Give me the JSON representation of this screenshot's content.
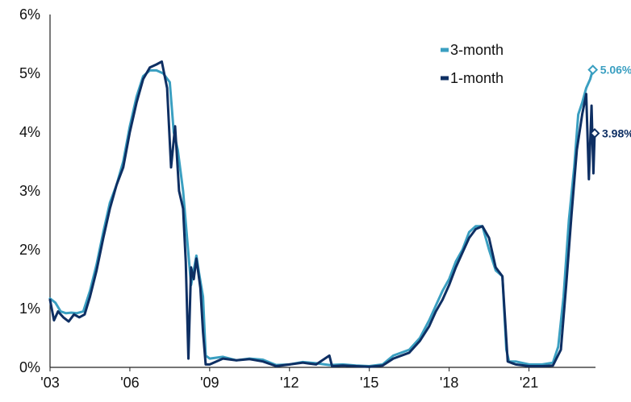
{
  "chart_data": {
    "type": "line",
    "title": "",
    "xlabel": "",
    "ylabel": "",
    "x_ticks": [
      "'03",
      "'06",
      "'09",
      "'12",
      "'15",
      "'18",
      "'21"
    ],
    "y_ticks": [
      "0%",
      "1%",
      "2%",
      "3%",
      "4%",
      "5%",
      "6%"
    ],
    "xlim": [
      2003.0,
      2023.5
    ],
    "ylim": [
      0,
      6
    ],
    "grid": false,
    "legend_position": "top-right",
    "series": [
      {
        "name": "3-month",
        "color": "#3a9fc1",
        "end_label": "5.06%",
        "end_value": 5.06,
        "points": [
          [
            2003.0,
            1.17
          ],
          [
            2003.2,
            1.1
          ],
          [
            2003.4,
            0.95
          ],
          [
            2003.6,
            0.92
          ],
          [
            2003.8,
            0.93
          ],
          [
            2004.0,
            0.92
          ],
          [
            2004.25,
            0.95
          ],
          [
            2004.5,
            1.3
          ],
          [
            2004.75,
            1.75
          ],
          [
            2005.0,
            2.3
          ],
          [
            2005.25,
            2.8
          ],
          [
            2005.5,
            3.1
          ],
          [
            2005.75,
            3.5
          ],
          [
            2006.0,
            4.1
          ],
          [
            2006.25,
            4.6
          ],
          [
            2006.5,
            4.95
          ],
          [
            2006.75,
            5.05
          ],
          [
            2007.0,
            5.05
          ],
          [
            2007.25,
            5.0
          ],
          [
            2007.5,
            4.85
          ],
          [
            2007.65,
            4.0
          ],
          [
            2007.8,
            3.7
          ],
          [
            2008.0,
            3.0
          ],
          [
            2008.15,
            2.2
          ],
          [
            2008.3,
            1.4
          ],
          [
            2008.5,
            1.9
          ],
          [
            2008.6,
            1.6
          ],
          [
            2008.75,
            1.2
          ],
          [
            2008.85,
            0.2
          ],
          [
            2009.0,
            0.15
          ],
          [
            2009.5,
            0.18
          ],
          [
            2010.0,
            0.12
          ],
          [
            2010.5,
            0.15
          ],
          [
            2011.0,
            0.13
          ],
          [
            2011.5,
            0.04
          ],
          [
            2012.0,
            0.05
          ],
          [
            2012.5,
            0.09
          ],
          [
            2013.0,
            0.07
          ],
          [
            2013.5,
            0.04
          ],
          [
            2014.0,
            0.05
          ],
          [
            2014.5,
            0.03
          ],
          [
            2015.0,
            0.02
          ],
          [
            2015.5,
            0.05
          ],
          [
            2015.9,
            0.2
          ],
          [
            2016.5,
            0.3
          ],
          [
            2016.9,
            0.5
          ],
          [
            2017.25,
            0.8
          ],
          [
            2017.5,
            1.05
          ],
          [
            2017.75,
            1.3
          ],
          [
            2018.0,
            1.5
          ],
          [
            2018.25,
            1.8
          ],
          [
            2018.5,
            2.0
          ],
          [
            2018.75,
            2.3
          ],
          [
            2019.0,
            2.4
          ],
          [
            2019.25,
            2.4
          ],
          [
            2019.5,
            2.0
          ],
          [
            2019.75,
            1.65
          ],
          [
            2020.0,
            1.55
          ],
          [
            2020.15,
            0.3
          ],
          [
            2020.25,
            0.1
          ],
          [
            2020.5,
            0.1
          ],
          [
            2021.0,
            0.05
          ],
          [
            2021.5,
            0.05
          ],
          [
            2021.9,
            0.08
          ],
          [
            2022.1,
            0.35
          ],
          [
            2022.3,
            1.2
          ],
          [
            2022.5,
            2.5
          ],
          [
            2022.7,
            3.4
          ],
          [
            2022.85,
            4.3
          ],
          [
            2023.0,
            4.5
          ],
          [
            2023.15,
            4.75
          ],
          [
            2023.3,
            4.9
          ],
          [
            2023.4,
            5.06
          ]
        ]
      },
      {
        "name": "1-month",
        "color": "#0e2f63",
        "end_label": "3.98%",
        "end_value": 3.98,
        "points": [
          [
            2003.0,
            1.15
          ],
          [
            2003.15,
            0.8
          ],
          [
            2003.3,
            0.95
          ],
          [
            2003.5,
            0.85
          ],
          [
            2003.7,
            0.78
          ],
          [
            2003.9,
            0.9
          ],
          [
            2004.1,
            0.85
          ],
          [
            2004.3,
            0.9
          ],
          [
            2004.5,
            1.2
          ],
          [
            2004.75,
            1.65
          ],
          [
            2005.0,
            2.2
          ],
          [
            2005.25,
            2.7
          ],
          [
            2005.5,
            3.1
          ],
          [
            2005.75,
            3.4
          ],
          [
            2006.0,
            4.0
          ],
          [
            2006.25,
            4.5
          ],
          [
            2006.5,
            4.9
          ],
          [
            2006.75,
            5.1
          ],
          [
            2007.0,
            5.15
          ],
          [
            2007.2,
            5.2
          ],
          [
            2007.4,
            4.75
          ],
          [
            2007.55,
            3.4
          ],
          [
            2007.7,
            4.1
          ],
          [
            2007.85,
            3.0
          ],
          [
            2008.0,
            2.7
          ],
          [
            2008.1,
            1.8
          ],
          [
            2008.2,
            0.15
          ],
          [
            2008.3,
            1.7
          ],
          [
            2008.4,
            1.5
          ],
          [
            2008.5,
            1.85
          ],
          [
            2008.65,
            1.35
          ],
          [
            2008.75,
            0.6
          ],
          [
            2008.85,
            0.05
          ],
          [
            2009.0,
            0.05
          ],
          [
            2009.5,
            0.15
          ],
          [
            2010.0,
            0.12
          ],
          [
            2010.5,
            0.14
          ],
          [
            2011.0,
            0.1
          ],
          [
            2011.5,
            0.02
          ],
          [
            2012.0,
            0.05
          ],
          [
            2012.5,
            0.08
          ],
          [
            2013.0,
            0.05
          ],
          [
            2013.5,
            0.2
          ],
          [
            2013.6,
            0.02
          ],
          [
            2014.0,
            0.03
          ],
          [
            2015.0,
            0.01
          ],
          [
            2015.5,
            0.03
          ],
          [
            2015.9,
            0.15
          ],
          [
            2016.5,
            0.25
          ],
          [
            2016.9,
            0.45
          ],
          [
            2017.25,
            0.7
          ],
          [
            2017.5,
            0.95
          ],
          [
            2017.75,
            1.15
          ],
          [
            2018.0,
            1.4
          ],
          [
            2018.25,
            1.7
          ],
          [
            2018.5,
            1.95
          ],
          [
            2018.75,
            2.2
          ],
          [
            2019.0,
            2.35
          ],
          [
            2019.25,
            2.4
          ],
          [
            2019.5,
            2.2
          ],
          [
            2019.75,
            1.7
          ],
          [
            2020.0,
            1.55
          ],
          [
            2020.2,
            0.1
          ],
          [
            2020.5,
            0.05
          ],
          [
            2021.0,
            0.02
          ],
          [
            2021.5,
            0.02
          ],
          [
            2021.9,
            0.03
          ],
          [
            2022.2,
            0.3
          ],
          [
            2022.4,
            1.4
          ],
          [
            2022.6,
            2.6
          ],
          [
            2022.8,
            3.7
          ],
          [
            2023.0,
            4.3
          ],
          [
            2023.15,
            4.65
          ],
          [
            2023.25,
            3.2
          ],
          [
            2023.35,
            4.45
          ],
          [
            2023.42,
            3.3
          ],
          [
            2023.47,
            3.98
          ]
        ]
      }
    ]
  }
}
